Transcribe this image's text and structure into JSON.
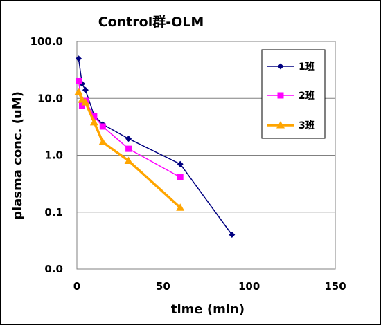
{
  "chart_data": {
    "type": "line",
    "title": "Control群-OLM",
    "xlabel": "time (min)",
    "ylabel": "plasma conc. (uM)",
    "xlim": [
      0,
      150
    ],
    "ylim": [
      0.01,
      100
    ],
    "y_scale": "log",
    "x_ticks": [
      0,
      50,
      100,
      150
    ],
    "x_tick_labels": [
      "0",
      "50",
      "100",
      "150"
    ],
    "y_ticks": [
      100,
      10,
      1,
      0.1,
      0.01
    ],
    "y_tick_labels": [
      "100.0",
      "10.0",
      "1.0",
      "0.1",
      "0.0"
    ],
    "grid": "horizontal",
    "legend_position": "top-right",
    "series": [
      {
        "name": "1班",
        "color": "#000080",
        "marker": "diamond",
        "x": [
          1,
          3,
          5,
          10,
          15,
          30,
          60,
          90
        ],
        "y": [
          50,
          18,
          14,
          5,
          3.5,
          1.95,
          0.7,
          0.04
        ]
      },
      {
        "name": "2班",
        "color": "#ff00ff",
        "marker": "square",
        "x": [
          1,
          3,
          5,
          10,
          15,
          30,
          60
        ],
        "y": [
          20,
          7.5,
          9,
          4.8,
          3.2,
          1.3,
          0.41
        ]
      },
      {
        "name": "3班",
        "color": "#ffa500",
        "marker": "triangle",
        "x": [
          1,
          3,
          5,
          10,
          15,
          30,
          60
        ],
        "y": [
          13,
          9.5,
          8.5,
          3.8,
          1.7,
          0.8,
          0.12
        ]
      }
    ]
  }
}
